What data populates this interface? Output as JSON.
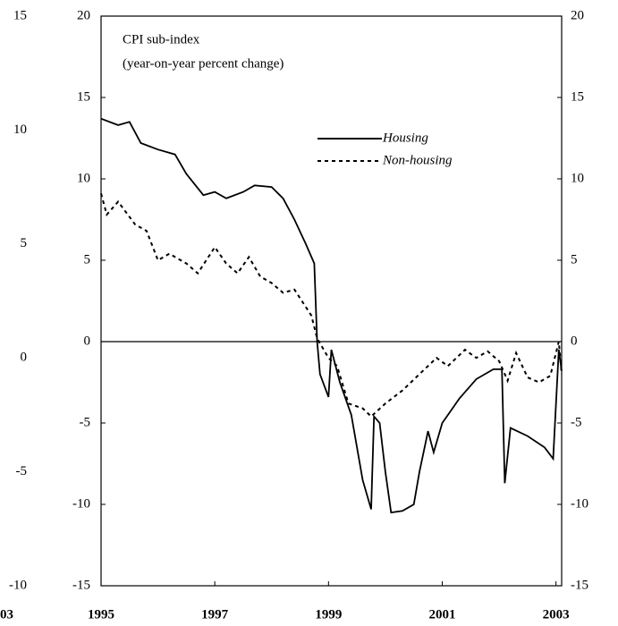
{
  "chart_data": [
    {
      "type": "line",
      "annotations": [
        "CPI sub-index",
        "(year-on-year percent change)"
      ],
      "xlim": [
        1995,
        2003.1
      ],
      "xticks": [
        1995,
        1997,
        1999,
        2001,
        2003
      ],
      "ylim": [
        -15,
        20
      ],
      "yticks": [
        -15,
        -10,
        -5,
        0,
        5,
        10,
        15,
        20
      ],
      "zero_line": true,
      "series": [
        {
          "name": "Housing",
          "color": "#000000",
          "dash": false,
          "x": [
            1995,
            1995.3,
            1995.5,
            1995.7,
            1996,
            1996.3,
            1996.5,
            1996.8,
            1997,
            1997.2,
            1997.5,
            1997.7,
            1998,
            1998.2,
            1998.4,
            1998.6,
            1998.75,
            1998.8,
            1998.85,
            1999,
            1999.05,
            1999.2,
            1999.4,
            1999.6,
            1999.75,
            1999.8,
            1999.9,
            2000.0,
            2000.1,
            2000.3,
            2000.5,
            2000.6,
            2000.75,
            2000.85,
            2001,
            2001.3,
            2001.6,
            2001.9,
            2002.05,
            2002.1,
            2002.2,
            2002.5,
            2002.8,
            2002.95,
            2003.05,
            2003.1
          ],
          "values": [
            13.7,
            13.3,
            13.5,
            12.2,
            11.8,
            11.5,
            10.3,
            9.0,
            9.2,
            8.8,
            9.2,
            9.6,
            9.5,
            8.8,
            7.5,
            6,
            4.8,
            0,
            -2,
            -3.4,
            -0.5,
            -2.5,
            -4.5,
            -8.5,
            -10.3,
            -4.6,
            -5,
            -8,
            -10.5,
            -10.4,
            -10,
            -8,
            -5.5,
            -6.8,
            -5,
            -3.5,
            -2.3,
            -1.7,
            -1.7,
            -8.7,
            -5.3,
            -5.8,
            -6.5,
            -7.2,
            -0.5,
            -1.8
          ]
        },
        {
          "name": "Non-housing",
          "color": "#000000",
          "dash": true,
          "x": [
            1995,
            1995.1,
            1995.3,
            1995.6,
            1995.8,
            1996,
            1996.2,
            1996.5,
            1996.7,
            1997,
            1997.2,
            1997.4,
            1997.6,
            1997.8,
            1998,
            1998.2,
            1998.4,
            1998.7,
            1998.8,
            1999,
            1999.15,
            1999.35,
            1999.6,
            1999.75,
            2000,
            2000.3,
            2000.6,
            2000.9,
            2001.1,
            2001.4,
            2001.6,
            2001.8,
            2002,
            2002.15,
            2002.3,
            2002.5,
            2002.7,
            2002.9,
            2003.05,
            2003.1
          ],
          "values": [
            9.1,
            7.8,
            8.6,
            7.2,
            6.8,
            5.0,
            5.4,
            4.8,
            4.2,
            5.8,
            4.8,
            4.2,
            5.2,
            4.0,
            3.6,
            3.0,
            3.2,
            1.6,
            0.2,
            -1.0,
            -1.5,
            -3.8,
            -4.1,
            -4.6,
            -3.8,
            -3.0,
            -2.0,
            -1.0,
            -1.5,
            -0.5,
            -1.0,
            -0.6,
            -1.2,
            -2.4,
            -0.7,
            -2.2,
            -2.5,
            -2.1,
            0,
            -2
          ]
        }
      ]
    },
    {
      "type": "axis-fragment",
      "ylim": [
        -10,
        15
      ],
      "yticks": [
        -10,
        -5,
        0,
        5,
        10,
        15
      ],
      "xticks": [
        {
          "value": 2003,
          "label": "03"
        }
      ]
    }
  ]
}
